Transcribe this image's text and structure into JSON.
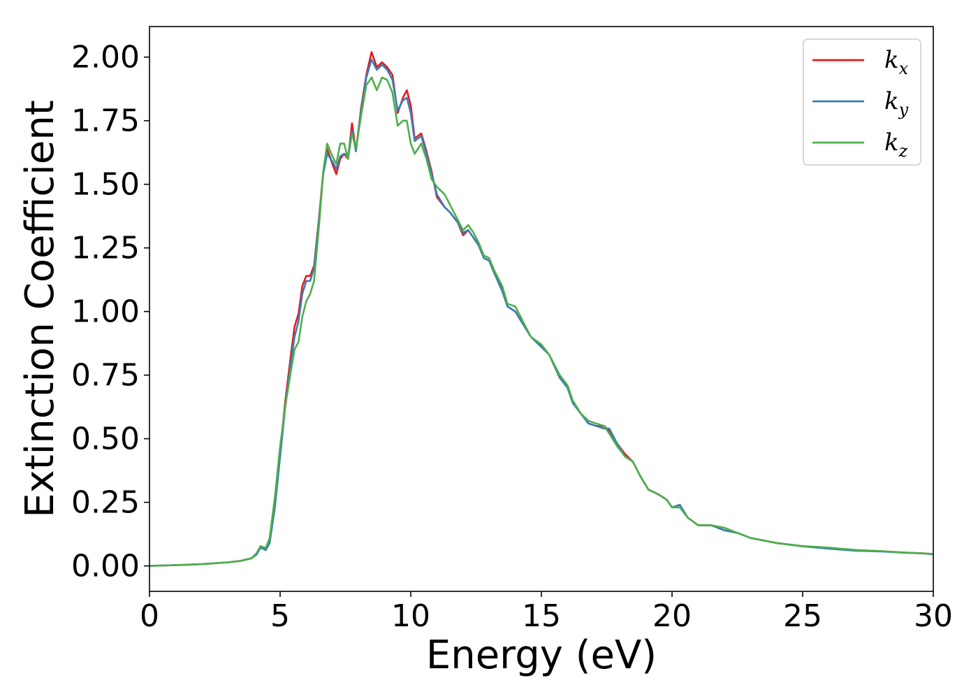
{
  "chart_data": {
    "type": "line",
    "title": "",
    "xlabel": "Energy (eV)",
    "ylabel": "Extinction Coefficient",
    "xlim": [
      0,
      30
    ],
    "ylim": [
      -0.1,
      2.12
    ],
    "xticks": [
      "0",
      "5",
      "10",
      "15",
      "20",
      "25",
      "30"
    ],
    "yticks": [
      "0.00",
      "0.25",
      "0.50",
      "0.75",
      "1.00",
      "1.25",
      "1.50",
      "1.75",
      "2.00"
    ],
    "grid": false,
    "legend_position": "top-right",
    "series": [
      {
        "name": "k",
        "subscript": "x",
        "color": "#e41a1c",
        "points": [
          [
            0,
            0.0
          ],
          [
            1,
            0.003
          ],
          [
            2,
            0.007
          ],
          [
            3,
            0.014
          ],
          [
            3.5,
            0.02
          ],
          [
            3.9,
            0.03
          ],
          [
            4.1,
            0.045
          ],
          [
            4.25,
            0.075
          ],
          [
            4.45,
            0.065
          ],
          [
            4.6,
            0.1
          ],
          [
            4.8,
            0.25
          ],
          [
            5.0,
            0.45
          ],
          [
            5.2,
            0.65
          ],
          [
            5.4,
            0.82
          ],
          [
            5.55,
            0.94
          ],
          [
            5.7,
            0.99
          ],
          [
            5.85,
            1.1
          ],
          [
            6.0,
            1.14
          ],
          [
            6.15,
            1.14
          ],
          [
            6.3,
            1.18
          ],
          [
            6.5,
            1.38
          ],
          [
            6.65,
            1.55
          ],
          [
            6.8,
            1.64
          ],
          [
            7.0,
            1.58
          ],
          [
            7.15,
            1.54
          ],
          [
            7.3,
            1.6
          ],
          [
            7.45,
            1.62
          ],
          [
            7.6,
            1.6
          ],
          [
            7.75,
            1.74
          ],
          [
            7.9,
            1.63
          ],
          [
            8.1,
            1.8
          ],
          [
            8.3,
            1.93
          ],
          [
            8.5,
            2.02
          ],
          [
            8.7,
            1.96
          ],
          [
            8.9,
            1.98
          ],
          [
            9.1,
            1.96
          ],
          [
            9.3,
            1.93
          ],
          [
            9.5,
            1.78
          ],
          [
            9.7,
            1.84
          ],
          [
            9.85,
            1.87
          ],
          [
            10.0,
            1.81
          ],
          [
            10.15,
            1.68
          ],
          [
            10.4,
            1.7
          ],
          [
            10.6,
            1.63
          ],
          [
            10.8,
            1.55
          ],
          [
            11.0,
            1.45
          ],
          [
            11.3,
            1.41
          ],
          [
            11.5,
            1.39
          ],
          [
            11.8,
            1.35
          ],
          [
            12.0,
            1.3
          ],
          [
            12.2,
            1.32
          ],
          [
            12.4,
            1.29
          ],
          [
            12.6,
            1.26
          ],
          [
            12.8,
            1.21
          ],
          [
            13.0,
            1.2
          ],
          [
            13.2,
            1.15
          ],
          [
            13.5,
            1.09
          ],
          [
            13.7,
            1.02
          ],
          [
            14.0,
            1.0
          ],
          [
            14.3,
            0.95
          ],
          [
            14.6,
            0.9
          ],
          [
            15.0,
            0.87
          ],
          [
            15.3,
            0.83
          ],
          [
            15.7,
            0.74
          ],
          [
            16.0,
            0.7
          ],
          [
            16.2,
            0.65
          ],
          [
            16.5,
            0.6
          ],
          [
            16.8,
            0.56
          ],
          [
            17.1,
            0.55
          ],
          [
            17.4,
            0.55
          ],
          [
            17.6,
            0.53
          ],
          [
            17.9,
            0.48
          ],
          [
            18.2,
            0.44
          ],
          [
            18.5,
            0.41
          ],
          [
            18.8,
            0.35
          ],
          [
            19.1,
            0.3
          ],
          [
            19.5,
            0.28
          ],
          [
            19.8,
            0.26
          ],
          [
            20.0,
            0.23
          ],
          [
            20.3,
            0.24
          ],
          [
            20.6,
            0.19
          ],
          [
            21.0,
            0.16
          ],
          [
            21.5,
            0.16
          ],
          [
            22.0,
            0.14
          ],
          [
            22.5,
            0.13
          ],
          [
            23.0,
            0.11
          ],
          [
            23.5,
            0.1
          ],
          [
            24.0,
            0.09
          ],
          [
            25.0,
            0.077
          ],
          [
            26.0,
            0.07
          ],
          [
            27.0,
            0.062
          ],
          [
            28.0,
            0.058
          ],
          [
            29.0,
            0.052
          ],
          [
            29.5,
            0.05
          ],
          [
            30.0,
            0.047
          ]
        ]
      },
      {
        "name": "k",
        "subscript": "y",
        "color": "#377eb8",
        "points": [
          [
            0,
            0.0
          ],
          [
            1,
            0.003
          ],
          [
            2,
            0.007
          ],
          [
            3,
            0.014
          ],
          [
            3.5,
            0.02
          ],
          [
            3.9,
            0.03
          ],
          [
            4.1,
            0.045
          ],
          [
            4.25,
            0.072
          ],
          [
            4.45,
            0.062
          ],
          [
            4.6,
            0.09
          ],
          [
            4.8,
            0.23
          ],
          [
            5.0,
            0.43
          ],
          [
            5.2,
            0.63
          ],
          [
            5.4,
            0.79
          ],
          [
            5.55,
            0.9
          ],
          [
            5.7,
            0.96
          ],
          [
            5.85,
            1.07
          ],
          [
            6.0,
            1.12
          ],
          [
            6.15,
            1.12
          ],
          [
            6.3,
            1.17
          ],
          [
            6.5,
            1.37
          ],
          [
            6.65,
            1.54
          ],
          [
            6.8,
            1.62
          ],
          [
            7.0,
            1.59
          ],
          [
            7.15,
            1.56
          ],
          [
            7.3,
            1.61
          ],
          [
            7.45,
            1.62
          ],
          [
            7.6,
            1.61
          ],
          [
            7.75,
            1.71
          ],
          [
            7.9,
            1.63
          ],
          [
            8.1,
            1.79
          ],
          [
            8.3,
            1.92
          ],
          [
            8.5,
            1.99
          ],
          [
            8.7,
            1.95
          ],
          [
            8.9,
            1.97
          ],
          [
            9.1,
            1.95
          ],
          [
            9.3,
            1.91
          ],
          [
            9.5,
            1.79
          ],
          [
            9.7,
            1.83
          ],
          [
            9.85,
            1.84
          ],
          [
            10.0,
            1.78
          ],
          [
            10.15,
            1.67
          ],
          [
            10.4,
            1.69
          ],
          [
            10.6,
            1.62
          ],
          [
            10.8,
            1.54
          ],
          [
            11.0,
            1.46
          ],
          [
            11.3,
            1.41
          ],
          [
            11.5,
            1.39
          ],
          [
            11.8,
            1.35
          ],
          [
            12.0,
            1.31
          ],
          [
            12.2,
            1.32
          ],
          [
            12.4,
            1.29
          ],
          [
            12.6,
            1.26
          ],
          [
            12.8,
            1.21
          ],
          [
            13.0,
            1.2
          ],
          [
            13.2,
            1.15
          ],
          [
            13.5,
            1.08
          ],
          [
            13.7,
            1.02
          ],
          [
            14.0,
            1.0
          ],
          [
            14.3,
            0.95
          ],
          [
            14.6,
            0.9
          ],
          [
            15.0,
            0.86
          ],
          [
            15.3,
            0.83
          ],
          [
            15.7,
            0.74
          ],
          [
            16.0,
            0.7
          ],
          [
            16.2,
            0.64
          ],
          [
            16.5,
            0.6
          ],
          [
            16.8,
            0.56
          ],
          [
            17.1,
            0.55
          ],
          [
            17.4,
            0.54
          ],
          [
            17.6,
            0.54
          ],
          [
            17.9,
            0.48
          ],
          [
            18.2,
            0.43
          ],
          [
            18.5,
            0.41
          ],
          [
            18.8,
            0.35
          ],
          [
            19.1,
            0.3
          ],
          [
            19.5,
            0.28
          ],
          [
            19.8,
            0.26
          ],
          [
            20.0,
            0.23
          ],
          [
            20.3,
            0.24
          ],
          [
            20.6,
            0.19
          ],
          [
            21.0,
            0.16
          ],
          [
            21.5,
            0.16
          ],
          [
            22.0,
            0.14
          ],
          [
            22.5,
            0.13
          ],
          [
            23.0,
            0.11
          ],
          [
            23.5,
            0.1
          ],
          [
            24.0,
            0.09
          ],
          [
            25.0,
            0.077
          ],
          [
            26.0,
            0.068
          ],
          [
            27.0,
            0.06
          ],
          [
            28.0,
            0.057
          ],
          [
            29.0,
            0.051
          ],
          [
            29.5,
            0.05
          ],
          [
            30.0,
            0.046
          ]
        ]
      },
      {
        "name": "k",
        "subscript": "z",
        "color": "#4daf4a",
        "points": [
          [
            0,
            0.0
          ],
          [
            1,
            0.003
          ],
          [
            2,
            0.007
          ],
          [
            3,
            0.014
          ],
          [
            3.5,
            0.02
          ],
          [
            3.9,
            0.03
          ],
          [
            4.1,
            0.05
          ],
          [
            4.25,
            0.078
          ],
          [
            4.45,
            0.07
          ],
          [
            4.6,
            0.11
          ],
          [
            4.8,
            0.27
          ],
          [
            5.0,
            0.47
          ],
          [
            5.2,
            0.63
          ],
          [
            5.4,
            0.76
          ],
          [
            5.55,
            0.85
          ],
          [
            5.7,
            0.88
          ],
          [
            5.85,
            0.98
          ],
          [
            6.0,
            1.04
          ],
          [
            6.15,
            1.07
          ],
          [
            6.3,
            1.12
          ],
          [
            6.5,
            1.35
          ],
          [
            6.65,
            1.55
          ],
          [
            6.8,
            1.66
          ],
          [
            7.0,
            1.61
          ],
          [
            7.15,
            1.58
          ],
          [
            7.3,
            1.66
          ],
          [
            7.45,
            1.66
          ],
          [
            7.6,
            1.6
          ],
          [
            7.75,
            1.7
          ],
          [
            7.9,
            1.64
          ],
          [
            8.1,
            1.77
          ],
          [
            8.3,
            1.89
          ],
          [
            8.5,
            1.92
          ],
          [
            8.7,
            1.87
          ],
          [
            8.9,
            1.92
          ],
          [
            9.1,
            1.91
          ],
          [
            9.3,
            1.86
          ],
          [
            9.5,
            1.73
          ],
          [
            9.7,
            1.75
          ],
          [
            9.85,
            1.75
          ],
          [
            10.0,
            1.66
          ],
          [
            10.15,
            1.62
          ],
          [
            10.4,
            1.66
          ],
          [
            10.6,
            1.6
          ],
          [
            10.8,
            1.52
          ],
          [
            11.0,
            1.49
          ],
          [
            11.3,
            1.46
          ],
          [
            11.5,
            1.42
          ],
          [
            11.8,
            1.36
          ],
          [
            12.0,
            1.32
          ],
          [
            12.2,
            1.34
          ],
          [
            12.4,
            1.31
          ],
          [
            12.6,
            1.27
          ],
          [
            12.8,
            1.22
          ],
          [
            13.0,
            1.21
          ],
          [
            13.2,
            1.16
          ],
          [
            13.5,
            1.1
          ],
          [
            13.7,
            1.03
          ],
          [
            14.0,
            1.02
          ],
          [
            14.3,
            0.96
          ],
          [
            14.6,
            0.9
          ],
          [
            15.0,
            0.87
          ],
          [
            15.3,
            0.83
          ],
          [
            15.7,
            0.75
          ],
          [
            16.0,
            0.71
          ],
          [
            16.2,
            0.65
          ],
          [
            16.5,
            0.6
          ],
          [
            16.8,
            0.57
          ],
          [
            17.1,
            0.56
          ],
          [
            17.4,
            0.55
          ],
          [
            17.6,
            0.52
          ],
          [
            17.9,
            0.47
          ],
          [
            18.2,
            0.43
          ],
          [
            18.5,
            0.41
          ],
          [
            18.8,
            0.35
          ],
          [
            19.1,
            0.3
          ],
          [
            19.5,
            0.28
          ],
          [
            19.8,
            0.26
          ],
          [
            20.0,
            0.23
          ],
          [
            20.3,
            0.23
          ],
          [
            20.6,
            0.19
          ],
          [
            21.0,
            0.16
          ],
          [
            21.5,
            0.16
          ],
          [
            22.0,
            0.15
          ],
          [
            22.5,
            0.13
          ],
          [
            23.0,
            0.11
          ],
          [
            23.5,
            0.1
          ],
          [
            24.0,
            0.09
          ],
          [
            25.0,
            0.078
          ],
          [
            26.0,
            0.072
          ],
          [
            27.0,
            0.063
          ],
          [
            28.0,
            0.058
          ],
          [
            29.0,
            0.052
          ],
          [
            29.5,
            0.05
          ],
          [
            30.0,
            0.047
          ]
        ]
      }
    ]
  }
}
